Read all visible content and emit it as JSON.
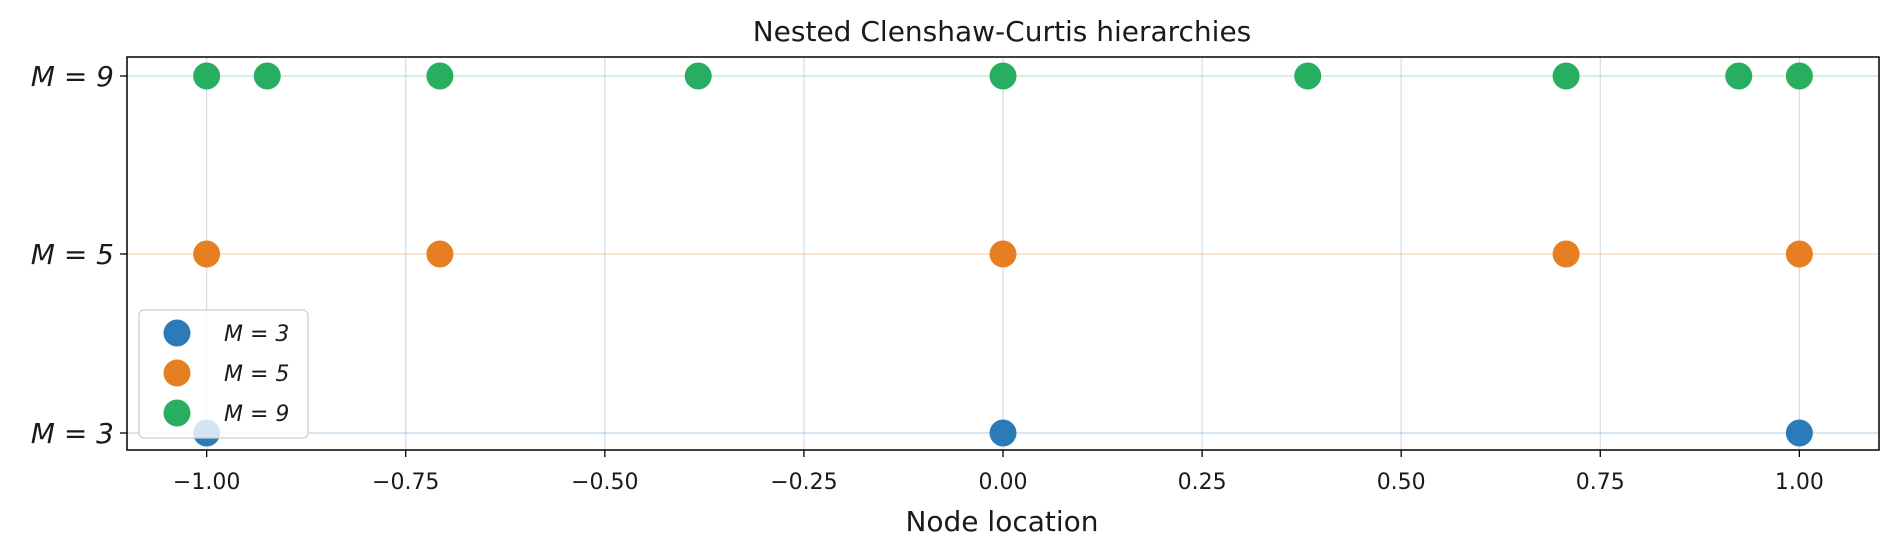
{
  "chart_data": {
    "type": "scatter",
    "title": "Nested Clenshaw-Curtis hierarchies",
    "xlabel": "Node location",
    "ylabel": "",
    "xlim": [
      -1.1,
      1.1
    ],
    "x_ticks": [
      -1.0,
      -0.75,
      -0.5,
      -0.25,
      0.0,
      0.25,
      0.5,
      0.75,
      1.0
    ],
    "x_tick_labels": [
      "−1.00",
      "−0.75",
      "−0.50",
      "−0.25",
      "0.00",
      "0.25",
      "0.50",
      "0.75",
      "1.00"
    ],
    "y_tick_labels": [
      "M = 3",
      "M = 5",
      "M = 9"
    ],
    "grid": true,
    "legend_position": "lower-left",
    "series": [
      {
        "name": "M = 3",
        "level": 0,
        "color": "#2b7bb9",
        "x": [
          -1.0,
          0.0,
          1.0
        ]
      },
      {
        "name": "M = 5",
        "level": 1,
        "color": "#e67e22",
        "x": [
          -1.0,
          -0.7071,
          0.0,
          0.7071,
          1.0
        ]
      },
      {
        "name": "M = 9",
        "level": 2,
        "color": "#27ae60",
        "x": [
          -1.0,
          -0.9239,
          -0.7071,
          -0.3827,
          0.0,
          0.3827,
          0.7071,
          0.9239,
          1.0
        ]
      }
    ]
  }
}
